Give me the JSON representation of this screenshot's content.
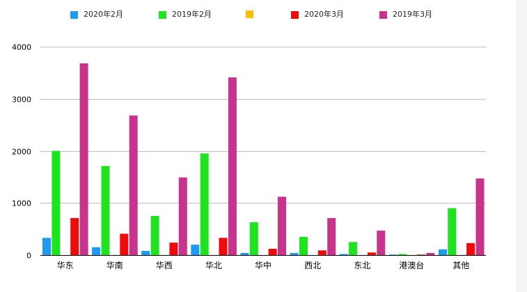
{
  "chart_data": {
    "type": "bar",
    "categories": [
      "华东",
      "华南",
      "华西",
      "华北",
      "华中",
      "西北",
      "东北",
      "港澳台",
      "其他"
    ],
    "series": [
      {
        "name": "2020年2月",
        "color": "#1e9bf0",
        "values": [
          330,
          150,
          80,
          200,
          40,
          40,
          20,
          10,
          110
        ]
      },
      {
        "name": "2019年2月",
        "color": "#1fe31f",
        "values": [
          2000,
          1710,
          750,
          1950,
          630,
          350,
          250,
          20,
          900
        ]
      },
      {
        "color": "#f8bf00",
        "values": [
          null,
          null,
          null,
          null,
          null,
          null,
          null,
          null,
          null
        ]
      },
      {
        "name": "2020年3月",
        "color": "#f00a0a",
        "values": [
          710,
          410,
          240,
          330,
          120,
          90,
          50,
          10,
          230
        ]
      },
      {
        "name": "2019年3月",
        "color": "#c8338b",
        "values": [
          3680,
          2680,
          1490,
          3410,
          1120,
          710,
          470,
          40,
          1470
        ]
      }
    ],
    "ylim": [
      0,
      4000
    ],
    "yticks": [
      0,
      1000,
      2000,
      3000,
      4000
    ],
    "grid": true,
    "legend": "top"
  }
}
